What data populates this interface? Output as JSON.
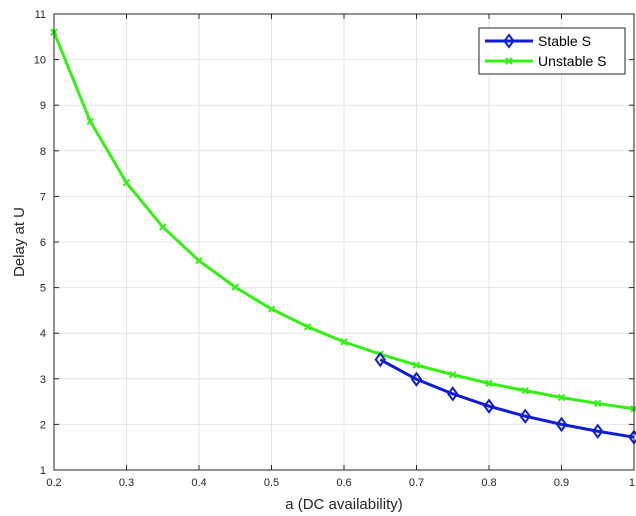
{
  "chart_data": {
    "type": "line",
    "title": "",
    "xlabel": "a (DC availability)",
    "ylabel": "Delay at U",
    "xlim": [
      0.2,
      1.0
    ],
    "ylim": [
      1,
      11
    ],
    "xticks": [
      0.2,
      0.3,
      0.4,
      0.5,
      0.6,
      0.7,
      0.8,
      0.9,
      1
    ],
    "xtick_labels": [
      "0.2",
      "0.3",
      "0.4",
      "0.5",
      "0.6",
      "0.7",
      "0.8",
      "0.9",
      "1"
    ],
    "yticks": [
      1,
      2,
      3,
      4,
      5,
      6,
      7,
      8,
      9,
      10,
      11
    ],
    "ytick_labels": [
      "1",
      "2",
      "3",
      "4",
      "5",
      "6",
      "7",
      "8",
      "9",
      "10",
      "11"
    ],
    "grid": true,
    "legend_position": "top-right",
    "series": [
      {
        "name": "Stable S",
        "color": "#0f1ed2",
        "marker": "diamond",
        "x": [
          0.65,
          0.7,
          0.75,
          0.8,
          0.85,
          0.9,
          0.95,
          1.0
        ],
        "y": [
          3.42,
          2.99,
          2.67,
          2.4,
          2.18,
          2.0,
          1.85,
          1.72
        ]
      },
      {
        "name": "Unstable S",
        "color": "#35f014",
        "marker": "x",
        "x": [
          0.2,
          0.25,
          0.3,
          0.35,
          0.4,
          0.45,
          0.5,
          0.55,
          0.6,
          0.65,
          0.7,
          0.75,
          0.8,
          0.85,
          0.9,
          0.95,
          1.0
        ],
        "y": [
          10.6,
          8.65,
          7.3,
          6.33,
          5.59,
          5.01,
          4.53,
          4.14,
          3.81,
          3.54,
          3.3,
          3.09,
          2.9,
          2.74,
          2.59,
          2.46,
          2.34
        ]
      }
    ]
  }
}
